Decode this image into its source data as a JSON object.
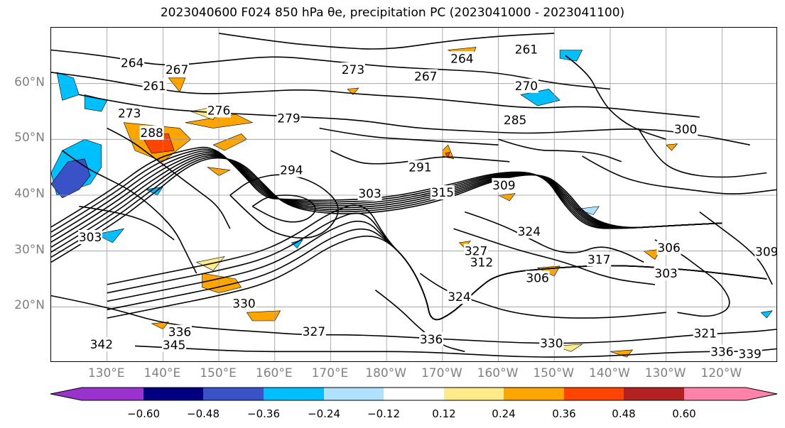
{
  "title": "2023040600 F024 850 hPa θe, precipitation PC (2023041000 - 2023041100)",
  "map": {
    "lat_labels": [
      {
        "text": "60°N",
        "lat": 60
      },
      {
        "text": "50°N",
        "lat": 50
      },
      {
        "text": "40°N",
        "lat": 40
      },
      {
        "text": "30°N",
        "lat": 30
      },
      {
        "text": "20°N",
        "lat": 20
      }
    ],
    "lon_labels": [
      "130°E",
      "140°E",
      "150°E",
      "160°E",
      "170°E",
      "180°W",
      "170°W",
      "160°W",
      "150°W",
      "140°W",
      "130°W",
      "120°W"
    ],
    "lat_range": [
      10,
      70
    ],
    "lon_range_east": [
      120,
      250
    ],
    "contour_labels": [
      {
        "text": "264",
        "lon": 134.5,
        "lat": 63.7
      },
      {
        "text": "267",
        "lon": 142.5,
        "lat": 62.5
      },
      {
        "text": "261",
        "lon": 138.5,
        "lat": 59.6
      },
      {
        "text": "276",
        "lon": 150,
        "lat": 55.2
      },
      {
        "text": "273",
        "lon": 134,
        "lat": 54.7
      },
      {
        "text": "279",
        "lon": 162.5,
        "lat": 53.8
      },
      {
        "text": "288",
        "lon": 138,
        "lat": 51.2
      },
      {
        "text": "273",
        "lon": 174,
        "lat": 62.5
      },
      {
        "text": "264",
        "lon": 193.5,
        "lat": 64.5
      },
      {
        "text": "267",
        "lon": 187,
        "lat": 61.3
      },
      {
        "text": "261",
        "lon": 205,
        "lat": 66.1
      },
      {
        "text": "270",
        "lon": 205,
        "lat": 59.6
      },
      {
        "text": "285",
        "lon": 203,
        "lat": 53.5
      },
      {
        "text": "291",
        "lon": 186,
        "lat": 45
      },
      {
        "text": "294",
        "lon": 163,
        "lat": 44.5
      },
      {
        "text": "300",
        "lon": 233.5,
        "lat": 51.8
      },
      {
        "text": "309",
        "lon": 201,
        "lat": 41.8
      },
      {
        "text": "315",
        "lon": 190,
        "lat": 40.5
      },
      {
        "text": "303",
        "lon": 177,
        "lat": 40.3
      },
      {
        "text": "324",
        "lon": 205.5,
        "lat": 33.5
      },
      {
        "text": "327",
        "lon": 196,
        "lat": 30
      },
      {
        "text": "317",
        "lon": 218,
        "lat": 28.5
      },
      {
        "text": "312",
        "lon": 197,
        "lat": 28
      },
      {
        "text": "306",
        "lon": 230.5,
        "lat": 30.6
      },
      {
        "text": "303",
        "lon": 230,
        "lat": 26
      },
      {
        "text": "306",
        "lon": 207,
        "lat": 25.2
      },
      {
        "text": "309",
        "lon": 248,
        "lat": 29.9
      },
      {
        "text": "324",
        "lon": 193,
        "lat": 21.8
      },
      {
        "text": "330",
        "lon": 154.5,
        "lat": 20.6
      },
      {
        "text": "336",
        "lon": 143,
        "lat": 15.5
      },
      {
        "text": "345",
        "lon": 142,
        "lat": 13.2
      },
      {
        "text": "342",
        "lon": 129,
        "lat": 13.3
      },
      {
        "text": "327",
        "lon": 167,
        "lat": 15.6
      },
      {
        "text": "336",
        "lon": 188,
        "lat": 14.2
      },
      {
        "text": "330",
        "lon": 209.5,
        "lat": 13.5
      },
      {
        "text": "321",
        "lon": 237,
        "lat": 15.3
      },
      {
        "text": "336",
        "lon": 240,
        "lat": 12
      },
      {
        "text": "339",
        "lon": 245,
        "lat": 11.6
      },
      {
        "text": "303",
        "lon": 127,
        "lat": 32.5
      }
    ]
  },
  "colorbar": {
    "labels": [
      "−0.60",
      "−0.48",
      "−0.36",
      "−0.24",
      "−0.12",
      "0.12",
      "0.24",
      "0.36",
      "0.48",
      "0.60"
    ],
    "colors": [
      "#9a32cd",
      "#000080",
      "#3a52c7",
      "#00bfff",
      "#b0e2ff",
      "#ffffff",
      "#ffeb8a",
      "#ffa500",
      "#ff4500",
      "#b22222",
      "#ff82ab"
    ]
  }
}
